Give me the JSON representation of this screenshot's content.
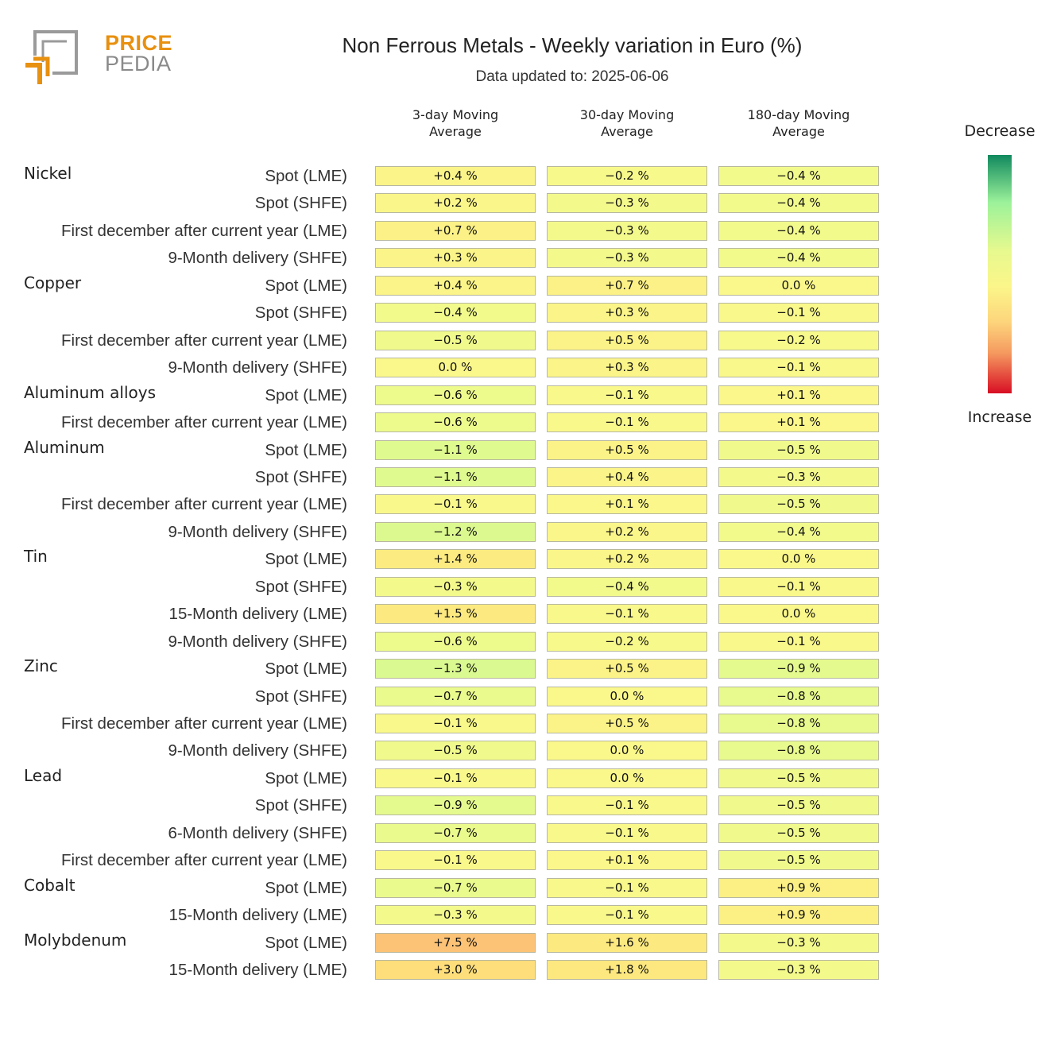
{
  "logo": {
    "line1": "PRICE",
    "line2": "PEDIA"
  },
  "chart_data": {
    "type": "heatmap",
    "title": "Non Ferrous Metals - Weekly variation in Euro (%)",
    "subtitle": "Data updated to: 2025-06-06",
    "columns": [
      "3-day Moving\nAverage",
      "30-day Moving\nAverage",
      "180-day Moving\nAverage"
    ],
    "legend": {
      "top": "Decrease",
      "bottom": "Increase"
    },
    "groups": [
      {
        "name": "Nickel",
        "rows": [
          {
            "label": "Spot (LME)",
            "values": [
              0.4,
              -0.2,
              -0.4
            ]
          },
          {
            "label": "Spot (SHFE)",
            "values": [
              0.2,
              -0.3,
              -0.4
            ]
          },
          {
            "label": "First december after current year (LME)",
            "values": [
              0.7,
              -0.3,
              -0.4
            ]
          },
          {
            "label": "9-Month delivery (SHFE)",
            "values": [
              0.3,
              -0.3,
              -0.4
            ]
          }
        ]
      },
      {
        "name": "Copper",
        "rows": [
          {
            "label": "Spot (LME)",
            "values": [
              0.4,
              0.7,
              0.0
            ]
          },
          {
            "label": "Spot (SHFE)",
            "values": [
              -0.4,
              0.3,
              -0.1
            ]
          },
          {
            "label": "First december after current year (LME)",
            "values": [
              -0.5,
              0.5,
              -0.2
            ]
          },
          {
            "label": "9-Month delivery (SHFE)",
            "values": [
              0.0,
              0.3,
              -0.1
            ]
          }
        ]
      },
      {
        "name": "Aluminum alloys",
        "rows": [
          {
            "label": "Spot (LME)",
            "values": [
              -0.6,
              -0.1,
              0.1
            ]
          },
          {
            "label": "First december after current year (LME)",
            "values": [
              -0.6,
              -0.1,
              0.1
            ]
          }
        ]
      },
      {
        "name": "Aluminum",
        "rows": [
          {
            "label": "Spot (LME)",
            "values": [
              -1.1,
              0.5,
              -0.5
            ]
          },
          {
            "label": "Spot (SHFE)",
            "values": [
              -1.1,
              0.4,
              -0.3
            ]
          },
          {
            "label": "First december after current year (LME)",
            "values": [
              -0.1,
              0.1,
              -0.5
            ]
          },
          {
            "label": "9-Month delivery (SHFE)",
            "values": [
              -1.2,
              0.2,
              -0.4
            ]
          }
        ]
      },
      {
        "name": "Tin",
        "rows": [
          {
            "label": "Spot (LME)",
            "values": [
              1.4,
              0.2,
              0.0
            ]
          },
          {
            "label": "Spot (SHFE)",
            "values": [
              -0.3,
              -0.4,
              -0.1
            ]
          },
          {
            "label": "15-Month delivery (LME)",
            "values": [
              1.5,
              -0.1,
              0.0
            ]
          },
          {
            "label": "9-Month delivery (SHFE)",
            "values": [
              -0.6,
              -0.2,
              -0.1
            ]
          }
        ]
      },
      {
        "name": "Zinc",
        "rows": [
          {
            "label": "Spot (LME)",
            "values": [
              -1.3,
              0.5,
              -0.9
            ]
          },
          {
            "label": "Spot (SHFE)",
            "values": [
              -0.7,
              0.0,
              -0.8
            ]
          },
          {
            "label": "First december after current year (LME)",
            "values": [
              -0.1,
              0.5,
              -0.8
            ]
          },
          {
            "label": "9-Month delivery (SHFE)",
            "values": [
              -0.5,
              0.0,
              -0.8
            ]
          }
        ]
      },
      {
        "name": "Lead",
        "rows": [
          {
            "label": "Spot (LME)",
            "values": [
              -0.1,
              0.0,
              -0.5
            ]
          },
          {
            "label": "Spot (SHFE)",
            "values": [
              -0.9,
              -0.1,
              -0.5
            ]
          },
          {
            "label": "6-Month delivery (SHFE)",
            "values": [
              -0.7,
              -0.1,
              -0.5
            ]
          },
          {
            "label": "First december after current year (LME)",
            "values": [
              -0.1,
              0.1,
              -0.5
            ]
          }
        ]
      },
      {
        "name": "Cobalt",
        "rows": [
          {
            "label": "Spot (LME)",
            "values": [
              -0.7,
              -0.1,
              0.9
            ]
          },
          {
            "label": "15-Month delivery (LME)",
            "values": [
              -0.3,
              -0.1,
              0.9
            ]
          }
        ]
      },
      {
        "name": "Molybdenum",
        "rows": [
          {
            "label": "Spot (LME)",
            "values": [
              7.5,
              1.6,
              -0.3
            ]
          },
          {
            "label": "15-Month delivery (LME)",
            "values": [
              3.0,
              1.8,
              -0.3
            ]
          }
        ]
      }
    ]
  }
}
